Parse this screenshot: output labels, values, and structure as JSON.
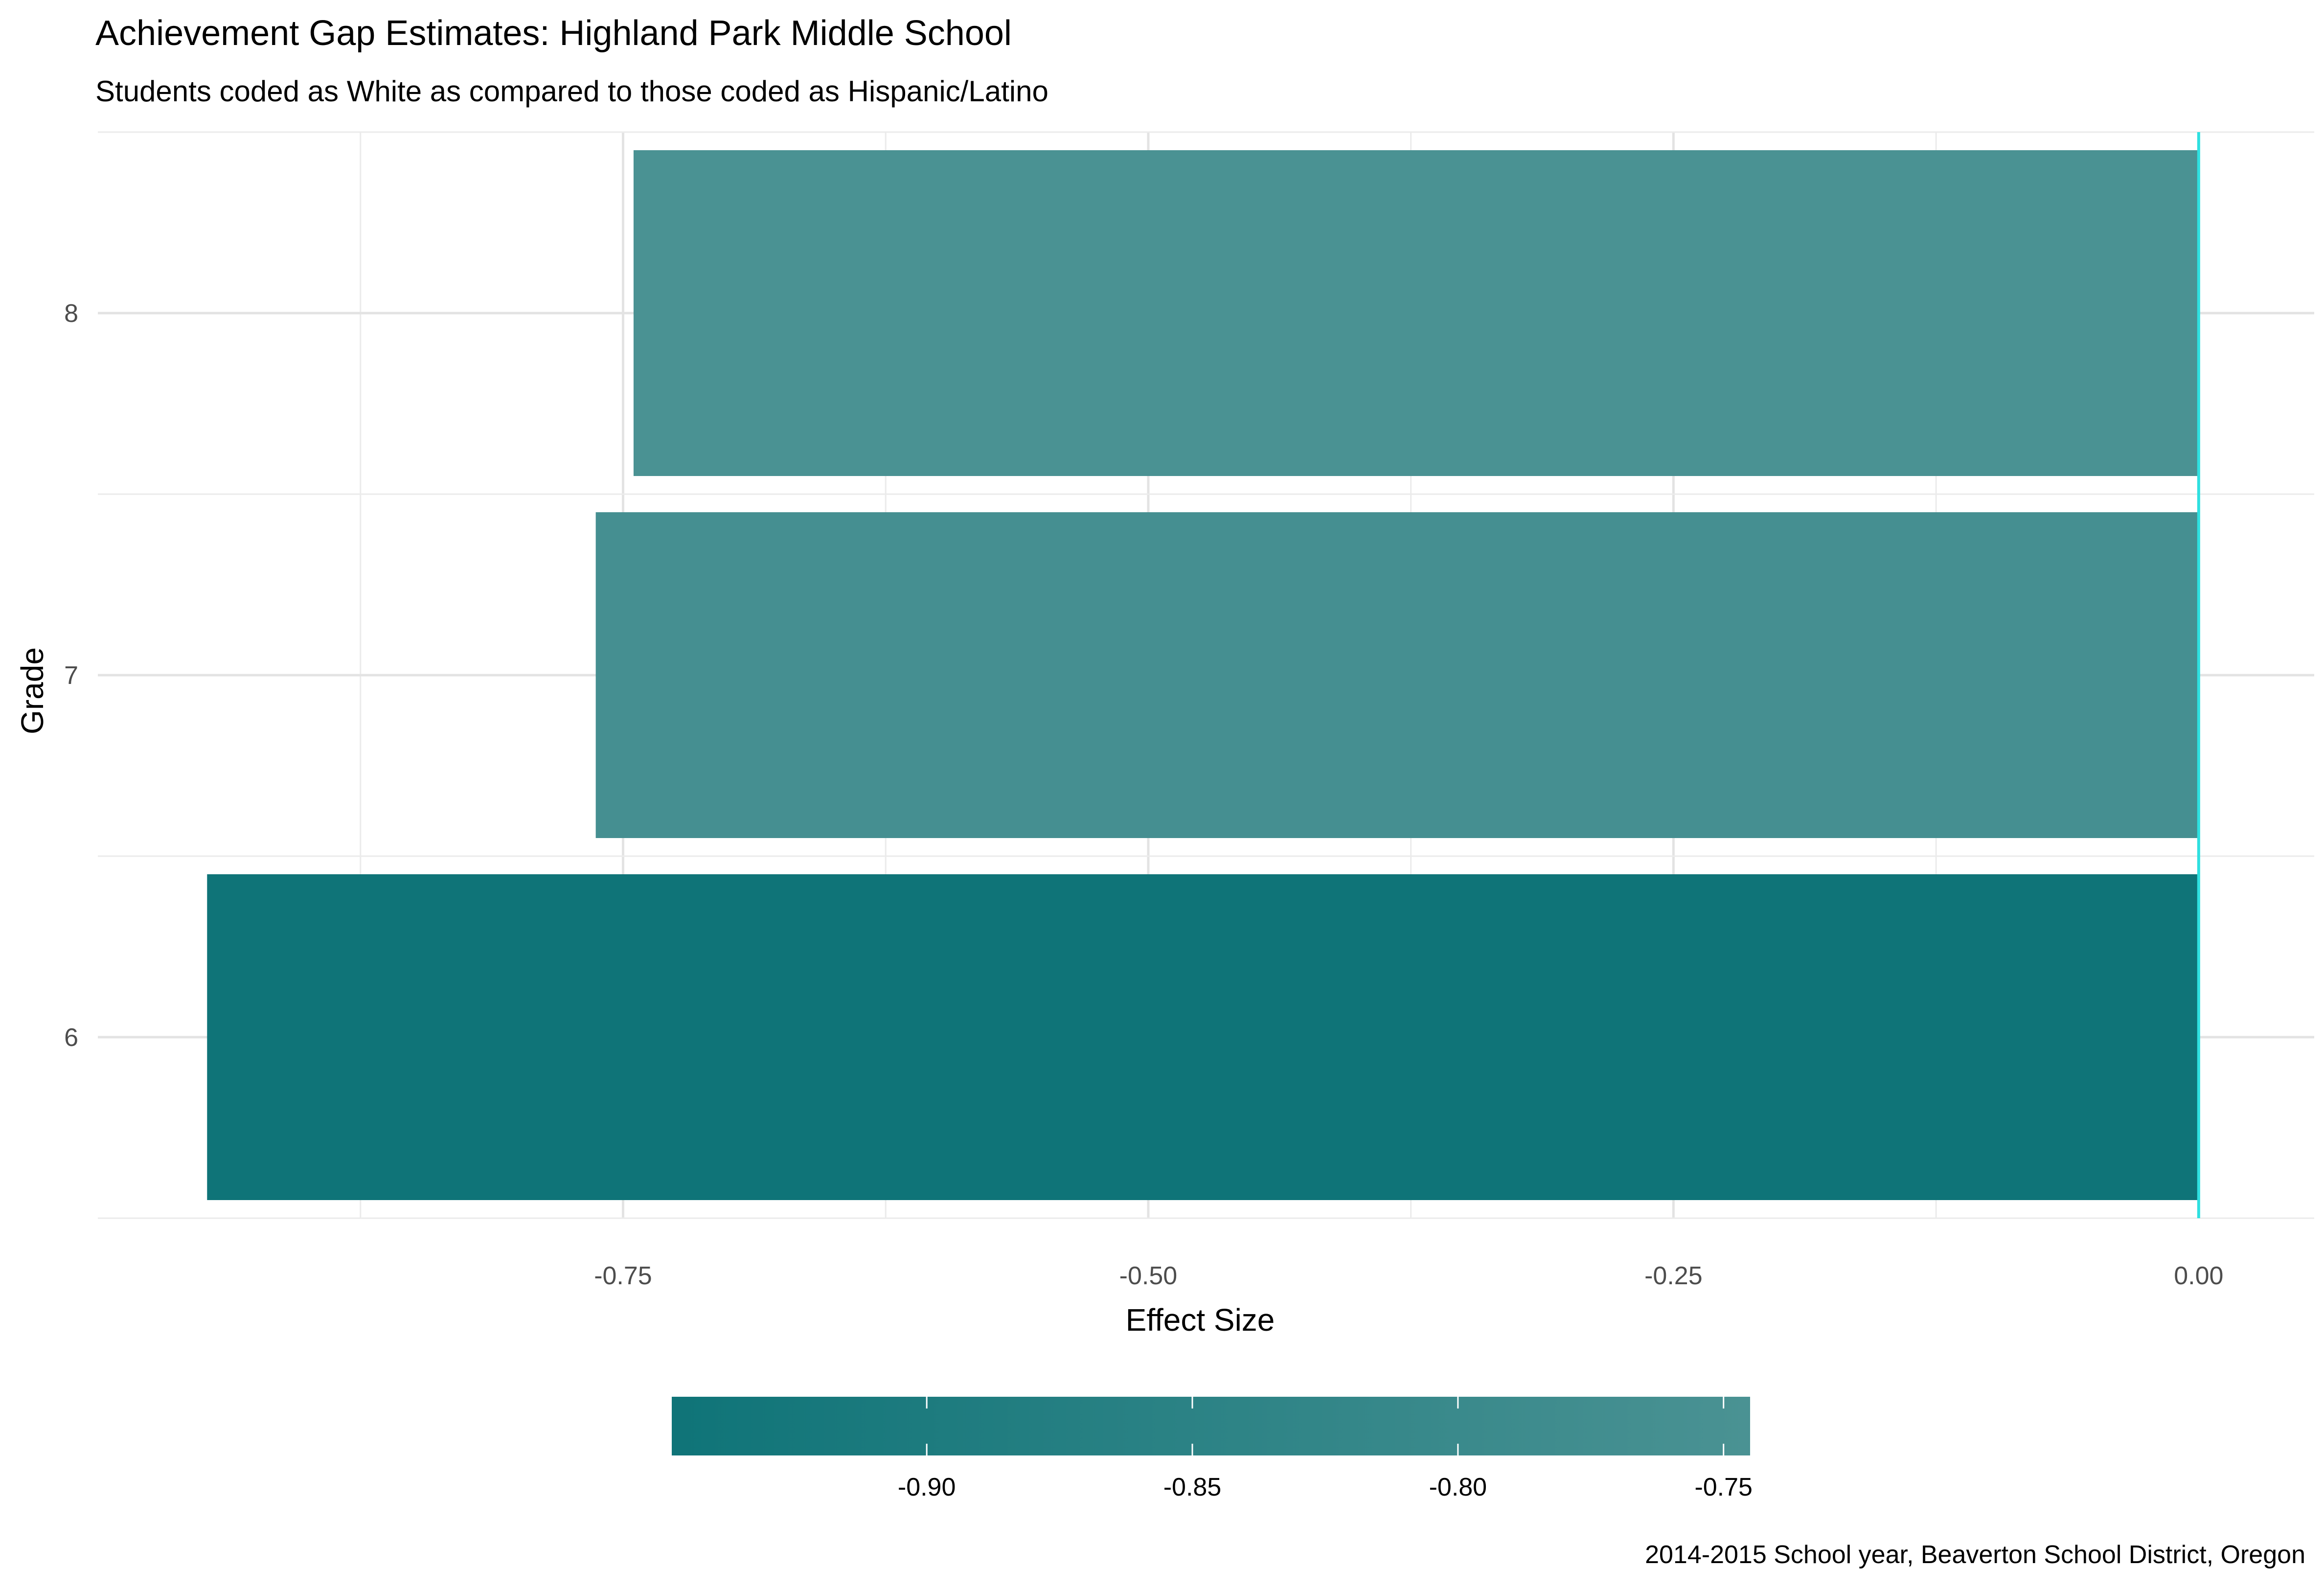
{
  "chart_data": {
    "type": "bar",
    "orientation": "horizontal",
    "title": "Achievement Gap Estimates: Highland Park Middle School",
    "subtitle": "Students coded as White as compared to those coded as Hispanic/Latino",
    "xlabel": "Effect Size",
    "ylabel": "Grade",
    "caption": "2014-2015 School year, Beaverton School District, Oregon",
    "categories": [
      "6",
      "7",
      "8"
    ],
    "values": [
      -0.948,
      -0.763,
      -0.745
    ],
    "xlim": [
      -1.0,
      0.055
    ],
    "x_ticks": [
      -0.75,
      -0.5,
      -0.25,
      0.0
    ],
    "x_tick_labels": [
      "-0.75",
      "-0.50",
      "-0.25",
      "0.00"
    ],
    "reference_line": {
      "x": 0,
      "color": "#2ee0e0"
    },
    "grid": true,
    "legend": {
      "position": "bottom",
      "type": "colorbar",
      "range": [
        -0.948,
        -0.745
      ],
      "color_low": "#0f7478",
      "color_high": "#4a9293",
      "ticks": [
        -0.9,
        -0.85,
        -0.8,
        -0.75
      ],
      "tick_labels": [
        "-0.90",
        "-0.85",
        "-0.80",
        "-0.75"
      ]
    }
  }
}
